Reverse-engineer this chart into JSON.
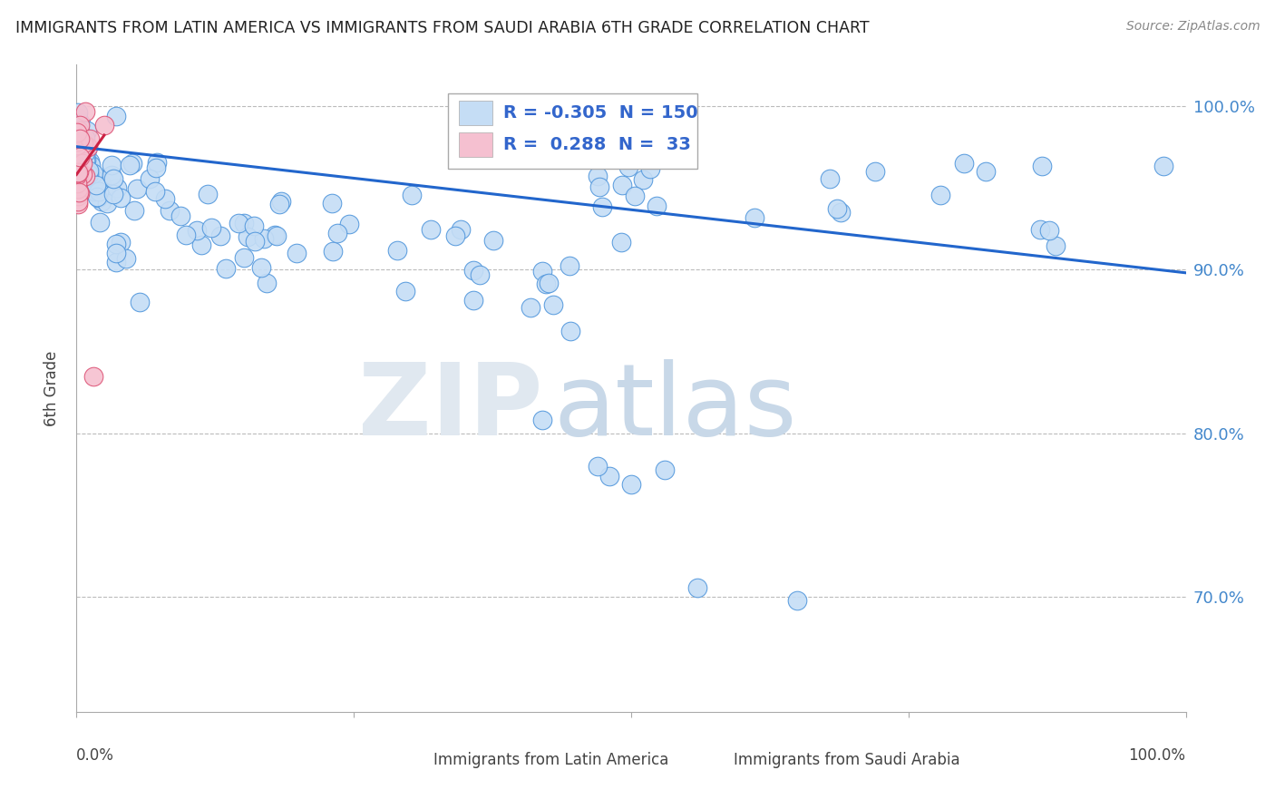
{
  "title": "IMMIGRANTS FROM LATIN AMERICA VS IMMIGRANTS FROM SAUDI ARABIA 6TH GRADE CORRELATION CHART",
  "source": "Source: ZipAtlas.com",
  "ylabel": "6th Grade",
  "legend_blue_r": "-0.305",
  "legend_blue_n": "150",
  "legend_pink_r": "0.288",
  "legend_pink_n": "33",
  "blue_scatter_color": "#c5ddf5",
  "blue_edge_color": "#5599dd",
  "blue_line_color": "#2266cc",
  "pink_scatter_color": "#f5c0d0",
  "pink_edge_color": "#dd5577",
  "pink_line_color": "#cc2244",
  "background_color": "#ffffff",
  "grid_color": "#bbbbbb",
  "watermark_zip": "ZIP",
  "watermark_atlas": "atlas",
  "xlim": [
    0.0,
    1.0
  ],
  "ylim": [
    0.63,
    1.025
  ],
  "yticks": [
    1.0,
    0.9,
    0.8,
    0.7
  ],
  "ytick_labels": [
    "100.0%",
    "90.0%",
    "80.0%",
    "70.0%"
  ],
  "blue_line_x0": 0.0,
  "blue_line_x1": 1.0,
  "blue_line_y0": 0.975,
  "blue_line_y1": 0.898,
  "pink_line_x0": 0.0,
  "pink_line_x1": 0.025,
  "pink_line_y0": 0.958,
  "pink_line_y1": 0.982
}
